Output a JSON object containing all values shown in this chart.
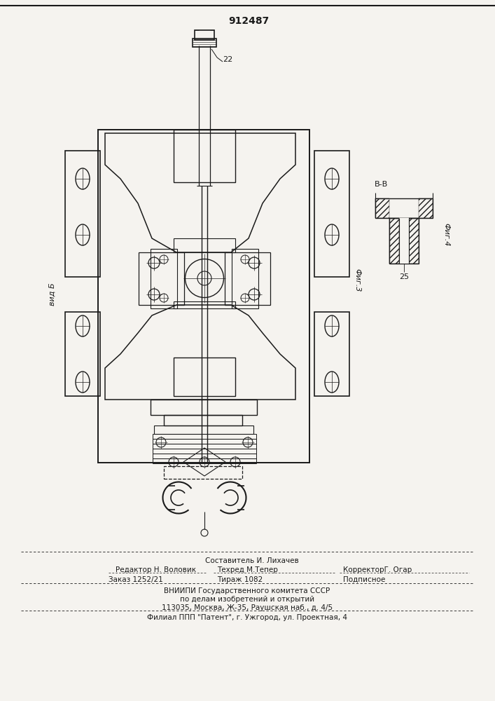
{
  "patent_number": "912487",
  "bg_color": "#f5f3ef",
  "line_color": "#1a1a1a",
  "label_22": "22",
  "label_vid_b": "вид Б",
  "label_fig3": "Фиг.3",
  "label_fig4": "Фиг.4",
  "label_bb": "В-В",
  "label_25": "25",
  "footer_line1": "Составитель И. Лихачев",
  "footer_line2_left": "Редактор Н. Воловик",
  "footer_line2_mid": "Техред М.Тепер",
  "footer_line2_right": "КорректорГ. Огар",
  "footer_line3_left": "Заказ 1252/21",
  "footer_line3_mid": "Тираж 1082",
  "footer_line3_right": "Подписное",
  "footer_line4": "ВНИИПИ Государственного комитета СССР",
  "footer_line5": "по делам изобретений и открытий",
  "footer_line6": "113035, Москва, Ж-35, Раушская наб., д. 4/5",
  "footer_line7": "Филиал ППП \"Патент\", г. Ужгород, ул. Проектная, 4"
}
